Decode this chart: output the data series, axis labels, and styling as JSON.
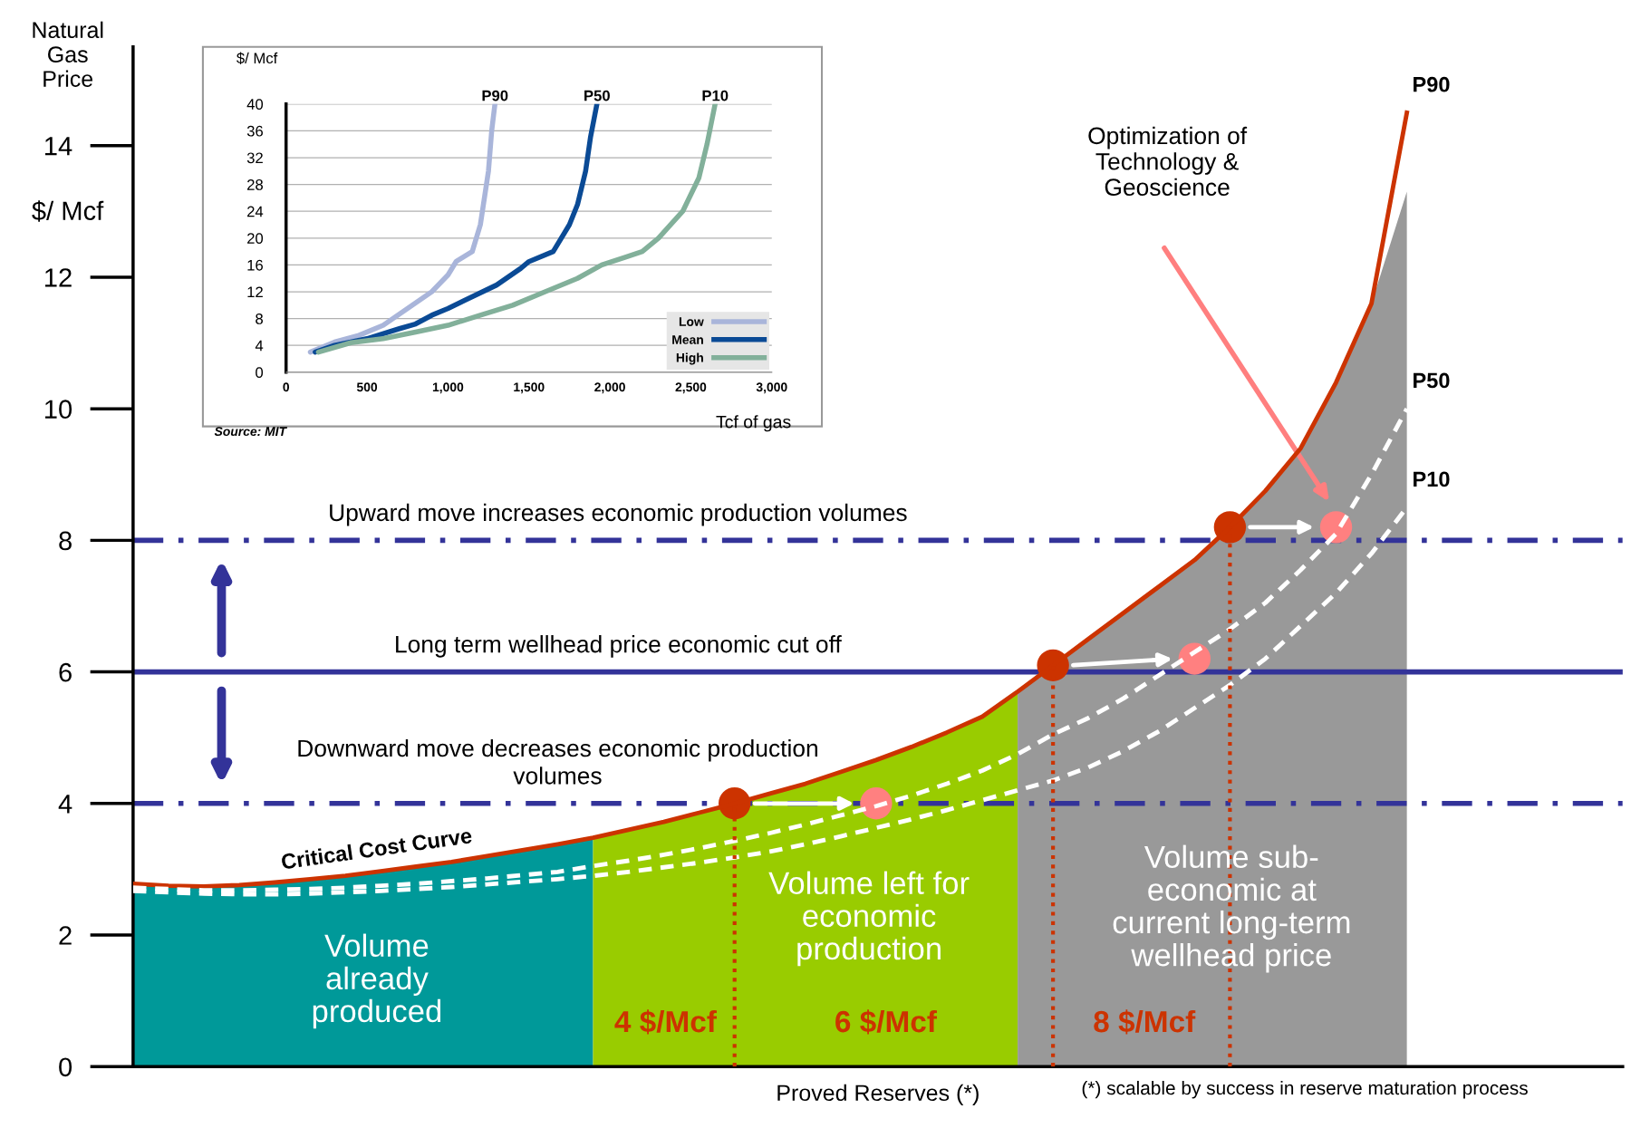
{
  "chart_data": [
    {
      "type": "line",
      "ylabel": "$/ Mcf",
      "xlabel": "Proved Reserves (*)",
      "ylim": [
        0,
        15.5
      ],
      "yticks": [
        0,
        2,
        4,
        6,
        8,
        10,
        12,
        14
      ],
      "grid": false,
      "legend": false,
      "tick_labels": "y",
      "categories": [
        null,
        null,
        null,
        null,
        null,
        null,
        null,
        null,
        null,
        null,
        null,
        null,
        null,
        null,
        null,
        null,
        null,
        null,
        null,
        null,
        null,
        null,
        null,
        null,
        null,
        null,
        null,
        null,
        null,
        null,
        null,
        null,
        null,
        null,
        null,
        null,
        null,
        null,
        null,
        null,
        null,
        null,
        null
      ],
      "series": [
        {
          "name": "Volume\nalready\nproduced",
          "type": "area",
          "color": "#009999",
          "values": [
            2.78,
            2.75,
            2.74,
            2.76,
            2.8,
            2.85,
            2.9,
            2.97,
            3.04,
            3.11,
            3.2,
            3.29,
            3.38,
            3.48,
            null,
            null,
            null,
            null,
            null,
            null,
            null,
            null,
            null,
            null,
            null,
            null,
            null,
            null,
            null,
            null,
            null,
            null,
            null,
            null,
            null,
            null,
            null,
            null,
            null,
            null,
            null,
            null,
            null
          ]
        },
        {
          "name": "Volume left for\neconomic\nproduction",
          "type": "area",
          "color": "#99cc00",
          "values": [
            null,
            null,
            null,
            null,
            null,
            null,
            null,
            null,
            null,
            null,
            null,
            null,
            null,
            3.48,
            3.6,
            3.72,
            3.86,
            null,
            4.15,
            4.3,
            4.48,
            4.66,
            4.86,
            5.08,
            5.32,
            5.7,
            null,
            null,
            null,
            null,
            null,
            null,
            null,
            null,
            null,
            null,
            null,
            null,
            null,
            null,
            null,
            null,
            null
          ]
        },
        {
          "name": "Volume sub-\neconomic at\ncurrent long-term\nwellhead price",
          "type": "area",
          "color": "#999999",
          "values": [
            null,
            null,
            null,
            null,
            null,
            null,
            null,
            null,
            null,
            null,
            null,
            null,
            null,
            null,
            null,
            null,
            null,
            null,
            null,
            null,
            null,
            null,
            null,
            null,
            null,
            5.7,
            null,
            6.5,
            6.9,
            7.3,
            7.7,
            null,
            8.75,
            9.4,
            10.4,
            11.6,
            13.3,
            null,
            null,
            null,
            null,
            null,
            null
          ]
        },
        {
          "name": "P90",
          "type": "line",
          "color": "#cc3300",
          "line_style": "solid",
          "values": [
            2.78,
            2.75,
            2.74,
            2.76,
            2.8,
            2.85,
            2.9,
            2.97,
            3.04,
            3.11,
            3.2,
            3.29,
            3.38,
            3.48,
            3.6,
            3.72,
            3.86,
            4.0,
            4.15,
            4.3,
            4.48,
            4.66,
            4.86,
            5.08,
            5.32,
            5.7,
            6.1,
            6.5,
            6.9,
            7.3,
            7.7,
            8.2,
            8.75,
            9.4,
            10.4,
            11.6,
            14.5,
            null,
            null,
            null,
            null,
            null,
            null
          ]
        },
        {
          "name": "P50",
          "type": "line",
          "color": "#ffffff",
          "line_style": "dashed",
          "values": [
            2.72,
            2.7,
            2.68,
            2.68,
            2.69,
            2.7,
            2.72,
            2.75,
            2.78,
            2.82,
            2.86,
            2.91,
            2.96,
            3.05,
            3.13,
            3.22,
            3.32,
            3.43,
            3.55,
            3.68,
            3.82,
            3.96,
            4.12,
            4.3,
            4.5,
            4.75,
            5.05,
            5.3,
            5.6,
            5.95,
            6.3,
            6.65,
            7.05,
            7.55,
            8.1,
            9.0,
            10.0,
            null,
            null,
            null,
            null,
            null,
            null
          ]
        },
        {
          "name": "P10",
          "type": "line",
          "color": "#ffffff",
          "line_style": "dashed",
          "values": [
            2.67,
            2.65,
            2.63,
            2.62,
            2.62,
            2.63,
            2.65,
            2.67,
            2.7,
            2.73,
            2.77,
            2.81,
            2.85,
            2.9,
            2.96,
            3.03,
            3.1,
            3.18,
            3.27,
            3.38,
            3.5,
            3.63,
            3.76,
            3.9,
            4.05,
            4.2,
            4.35,
            4.55,
            4.8,
            5.1,
            5.45,
            5.8,
            6.2,
            6.7,
            7.2,
            7.8,
            8.5,
            null,
            null,
            null,
            null,
            null,
            null
          ]
        },
        {
          "type": "scatter",
          "color": "#cc3300",
          "marker": "circle",
          "values": [
            null,
            null,
            null,
            null,
            null,
            null,
            null,
            null,
            null,
            null,
            null,
            null,
            null,
            null,
            null,
            null,
            null,
            4.0,
            null,
            null,
            null,
            null,
            null,
            null,
            null,
            null,
            6.1,
            null,
            null,
            null,
            null,
            8.2,
            null,
            null,
            null,
            null,
            null,
            null,
            null,
            null,
            null,
            null,
            null
          ],
          "errors": [
            null,
            null,
            null,
            null,
            null,
            null,
            null,
            null,
            null,
            null,
            null,
            null,
            null,
            null,
            null,
            null,
            null,
            [
              0,
              4.0
            ],
            null,
            null,
            null,
            null,
            null,
            null,
            null,
            null,
            [
              0,
              6.1
            ],
            null,
            null,
            null,
            null,
            [
              0,
              8.2
            ],
            null,
            null,
            null,
            null,
            null,
            null,
            null,
            null,
            null,
            null,
            null
          ]
        },
        {
          "type": "scatter",
          "color": "#ff8080",
          "marker": "circle",
          "values": [
            null,
            null,
            null,
            null,
            null,
            null,
            null,
            null,
            null,
            null,
            null,
            null,
            null,
            null,
            null,
            null,
            null,
            null,
            null,
            null,
            null,
            4.0,
            null,
            null,
            null,
            null,
            null,
            null,
            null,
            null,
            6.2,
            null,
            null,
            null,
            8.2,
            null,
            null,
            null,
            null,
            null,
            null,
            null,
            null
          ]
        }
      ],
      "ref_lines": [
        {
          "axis": "y",
          "value": 8,
          "label": "Upward move increases economic production volumes",
          "color": "#333399",
          "line_style": "dashdot"
        },
        {
          "axis": "y",
          "value": 6,
          "label": "Long term wellhead price economic cut off",
          "color": "#333399",
          "line_style": "solid"
        },
        {
          "axis": "y",
          "value": 4,
          "label": "Downward move decreases economic production\nvolumes",
          "color": "#333399",
          "line_style": "dashdot"
        }
      ],
      "annotations": [
        "Critical Cost Curve",
        "Optimization of\nTechnology &\nGeoscience",
        "4 $/Mcf",
        "6 $/Mcf",
        "8 $/Mcf",
        "(*) scalable by success in reserve maturation process",
        "Natural\nGas\nPrice"
      ]
    },
    {
      "type": "line",
      "ylabel": "$/ Mcf",
      "xlabel": "Tcf of gas",
      "xlim": [
        0,
        3000
      ],
      "ylim": [
        0,
        40
      ],
      "xticks": [
        0,
        500,
        {
          "value": 1000,
          "label": "1,000"
        },
        {
          "value": 1500,
          "label": "1,500"
        },
        {
          "value": 2000,
          "label": "2,000"
        },
        {
          "value": 2500,
          "label": "2,500"
        },
        {
          "value": 3000,
          "label": "3,000"
        }
      ],
      "yticks": [
        0,
        4,
        8,
        12,
        16,
        20,
        24,
        28,
        32,
        36,
        40
      ],
      "grid": "y",
      "legend": "bottom right",
      "series": [
        {
          "name": "Low",
          "color": "#a9b5da",
          "x": [
            150,
            300,
            450,
            600,
            750,
            900,
            1000,
            1050,
            1150,
            1200,
            1250,
            1270,
            1290
          ],
          "values": [
            3,
            4.5,
            5.5,
            7,
            9.5,
            12,
            14.5,
            16.5,
            18,
            22,
            30,
            36,
            40
          ]
        },
        {
          "name": "Mean",
          "color": "#0a4a95",
          "x": [
            180,
            300,
            500,
            700,
            800,
            900,
            1000,
            1100,
            1300,
            1450,
            1500,
            1650,
            1750,
            1800,
            1850,
            1880,
            1920
          ],
          "values": [
            3,
            4,
            5,
            6.5,
            7.2,
            8.5,
            9.5,
            10.7,
            13,
            15.5,
            16.5,
            18,
            22,
            25,
            30,
            35,
            40
          ]
        },
        {
          "name": "High",
          "color": "#82b09a",
          "x": [
            200,
            400,
            600,
            800,
            1000,
            1200,
            1400,
            1600,
            1800,
            1950,
            2100,
            2200,
            2300,
            2450,
            2550,
            2600,
            2650
          ],
          "values": [
            3,
            4.4,
            5,
            6,
            7,
            8.5,
            10,
            12,
            14,
            16,
            17.2,
            18,
            20,
            24,
            29,
            34,
            40
          ]
        }
      ],
      "annotations": [
        {
          "text": "P90",
          "x": 1290,
          "y": 40
        },
        {
          "text": "P50",
          "x": 1920,
          "y": 40
        },
        {
          "text": "P10",
          "x": 2650,
          "y": 40
        },
        "Source: MIT"
      ]
    }
  ]
}
